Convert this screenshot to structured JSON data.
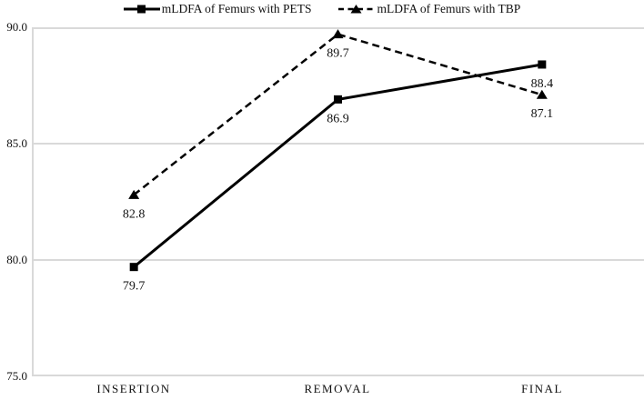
{
  "chart_data": {
    "type": "line",
    "categories": [
      "INSERTION",
      "REMOVAL",
      "FINAL"
    ],
    "series": [
      {
        "name": "mLDFA of Femurs with PETS",
        "values": [
          79.7,
          86.9,
          88.4
        ],
        "marker": "square",
        "line_style": "solid"
      },
      {
        "name": "mLDFA of Femurs with TBP",
        "values": [
          82.8,
          89.7,
          87.1
        ],
        "marker": "triangle",
        "line_style": "dashed"
      }
    ],
    "title": "",
    "xlabel": "",
    "ylabel": "",
    "ylim": [
      75.0,
      90.0
    ],
    "yticks": [
      90.0,
      85.0,
      80.0,
      75.0
    ],
    "ytick_labels": [
      "90.0",
      "85.0",
      "80.0",
      "75.0"
    ],
    "grid": true,
    "data_labels": true,
    "legend_position": "top-center",
    "colors": {
      "line": "#000000",
      "grid": "#d9d9d9",
      "text": "#111111",
      "background": "#ffffff"
    }
  }
}
